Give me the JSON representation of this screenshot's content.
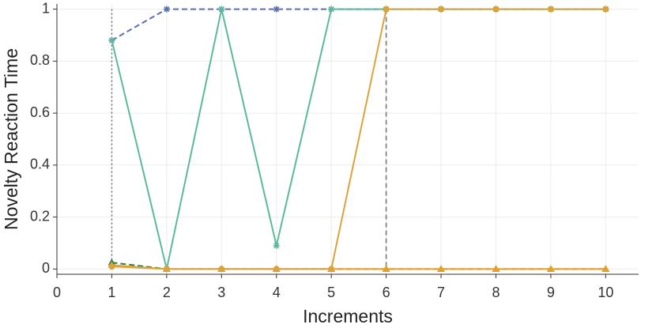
{
  "chart_data": {
    "type": "line",
    "xlabel": "Increments",
    "ylabel": "Novelty Reaction Time",
    "x": [
      1,
      2,
      3,
      4,
      5,
      6,
      7,
      8,
      9,
      10
    ],
    "series": [
      {
        "color": "#5a70b0",
        "dash": "dashed",
        "marker": "star",
        "values": [
          0.88,
          1,
          1,
          1,
          1,
          1,
          1,
          1,
          1,
          1
        ]
      },
      {
        "color": "#5bb99e",
        "dash": "solid",
        "marker": "star",
        "values": [
          0.88,
          0,
          1,
          0.09,
          1,
          1,
          1,
          1,
          1,
          1
        ]
      },
      {
        "color": "#2e7d4f",
        "dash": "dashed",
        "marker": "triangle",
        "values": [
          0.025,
          0,
          0,
          0,
          0,
          0,
          0,
          0,
          0,
          0
        ]
      },
      {
        "color": "#e6a024",
        "dash": "solid",
        "marker": "triangle",
        "values": [
          0.015,
          0,
          0,
          0,
          0,
          0,
          0,
          0,
          0,
          0
        ]
      },
      {
        "color": "#dba43a",
        "dash": "solid",
        "marker": "circle",
        "values": [
          0.01,
          0,
          0,
          0,
          0,
          1,
          1,
          1,
          1,
          1
        ]
      }
    ],
    "vlines": [
      {
        "x": 1,
        "style": "dotted"
      },
      {
        "x": 6,
        "style": "dashed"
      }
    ],
    "xlim": [
      0,
      10.6
    ],
    "xticks": [
      0,
      1,
      2,
      3,
      4,
      5,
      6,
      7,
      8,
      9,
      10
    ],
    "ylim": [
      -0.02,
      1.02
    ],
    "yticks": [
      0,
      0.2,
      0.4,
      0.6,
      0.8,
      1
    ],
    "grid": true
  }
}
